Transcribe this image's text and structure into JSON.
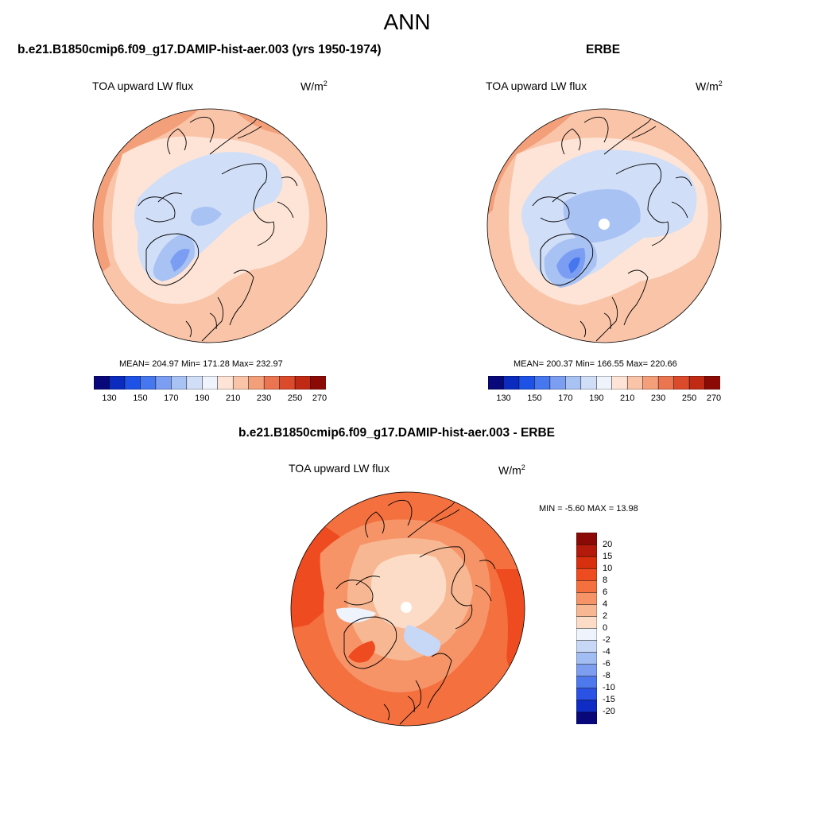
{
  "figure": {
    "main_title": "ANN"
  },
  "panels": [
    {
      "title": "b.e21.B1850cmip6.f09_g17.DAMIP-hist-aer.003 (yrs 1950-1974)",
      "variable": "TOA upward LW flux",
      "units_base": "W/m",
      "units_exp": "2",
      "stats_text": "MEAN= 204.97  Min= 171.28  Max= 232.97"
    },
    {
      "title": "ERBE",
      "variable": "TOA upward LW flux",
      "units_base": "W/m",
      "units_exp": "2",
      "stats_text": "MEAN= 200.37  Min= 166.55  Max= 220.66"
    },
    {
      "title": "b.e21.B1850cmip6.f09_g17.DAMIP-hist-aer.003 - ERBE",
      "variable": "TOA upward LW flux",
      "units_base": "W/m",
      "units_exp": "2",
      "stats_text": "MIN =  -5.60 MAX =  13.98"
    }
  ],
  "colorbar_abs": {
    "tick_labels": [
      "130",
      "150",
      "170",
      "190",
      "210",
      "230",
      "250",
      "270"
    ],
    "colors": [
      "#08087a",
      "#0a2bbd",
      "#1e52e6",
      "#4677ee",
      "#7b9ef2",
      "#a9c2f4",
      "#d0def8",
      "#eef3fc",
      "#fde4d6",
      "#f9c4a8",
      "#f3a07a",
      "#ea7550",
      "#dc4a2c",
      "#c02a14",
      "#8c0a05"
    ]
  },
  "colorbar_diff": {
    "tick_labels": [
      "20",
      "15",
      "10",
      "8",
      "6",
      "4",
      "2",
      "0",
      "-2",
      "-4",
      "-6",
      "-8",
      "-10",
      "-15",
      "-20"
    ],
    "colors": [
      "#8c0a05",
      "#b41a0c",
      "#d8300f",
      "#ef4b20",
      "#f4703f",
      "#f69468",
      "#f7b792",
      "#fcdcc6",
      "#eef3fc",
      "#c7d8f7",
      "#a2bdf3",
      "#7d9df0",
      "#4e79ec",
      "#2a52e4",
      "#0f2cc4",
      "#08087a"
    ]
  }
}
